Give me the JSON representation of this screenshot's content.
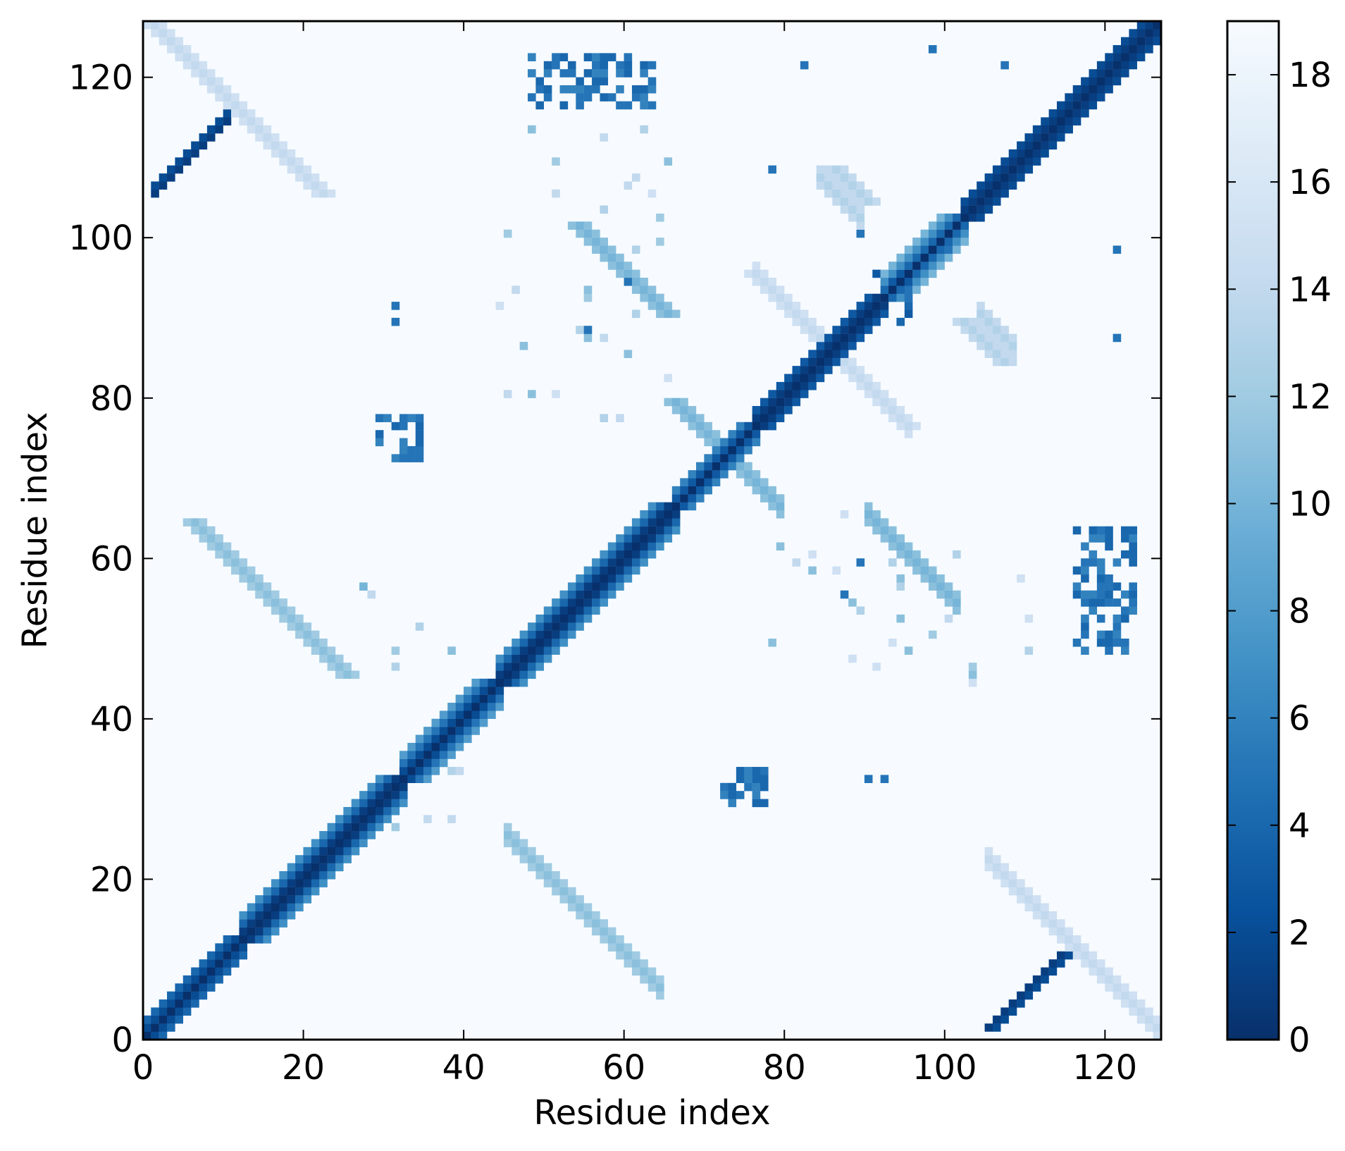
{
  "chart_data": {
    "type": "heatmap",
    "title": "",
    "xlabel": "Residue index",
    "ylabel": "Residue index",
    "n_residues": 127,
    "xlim": [
      0,
      127
    ],
    "ylim": [
      0,
      127
    ],
    "x_ticks": [
      "0",
      "20",
      "40",
      "60",
      "80",
      "100",
      "120"
    ],
    "y_ticks": [
      "0",
      "20",
      "40",
      "60",
      "80",
      "100",
      "120"
    ],
    "colorbar": {
      "min": 0,
      "max": 19,
      "ticks": [
        "0",
        "2",
        "4",
        "6",
        "8",
        "10",
        "12",
        "14",
        "16",
        "18"
      ],
      "colormap": "Blues_r",
      "colors": [
        "#08306b",
        "#08519c",
        "#2171b5",
        "#4292c6",
        "#6baed6",
        "#9ecae1",
        "#c6dbef",
        "#deebf7",
        "#f7fbff"
      ]
    },
    "background_value": 19,
    "features": [
      {
        "kind": "diagonal",
        "center_value": 0
      },
      {
        "kind": "helix_band",
        "from": 0,
        "to": 12,
        "values": [
          2,
          4
        ]
      },
      {
        "kind": "strand_band",
        "from": 12,
        "to": 32,
        "values": [
          1,
          4,
          7
        ]
      },
      {
        "kind": "strand_band",
        "from": 32,
        "to": 44,
        "values": [
          2,
          5,
          8
        ]
      },
      {
        "kind": "strand_band",
        "from": 44,
        "to": 66,
        "values": [
          1,
          4,
          7
        ]
      },
      {
        "kind": "helix_band",
        "from": 66,
        "to": 76,
        "values": [
          3,
          6
        ]
      },
      {
        "kind": "helix_band",
        "from": 76,
        "to": 92,
        "values": [
          1,
          3
        ]
      },
      {
        "kind": "strand_band",
        "from": 92,
        "to": 102,
        "values": [
          4,
          7,
          10
        ]
      },
      {
        "kind": "helix_band",
        "from": 102,
        "to": 127,
        "values": [
          1,
          2
        ]
      },
      {
        "kind": "antidiag",
        "i_range": [
          105,
          127
        ],
        "j0": 127,
        "value": 14
      },
      {
        "kind": "antidiag",
        "i_range": [
          76,
          96
        ],
        "j0": 171,
        "value": 14
      },
      {
        "kind": "antidiag",
        "i_range": [
          0,
          14
        ],
        "j0": 127,
        "value": 14
      },
      {
        "kind": "antidiag",
        "i_range": [
          84,
          90
        ],
        "j0": 191,
        "value": 13
      },
      {
        "kind": "antidiag",
        "i_range": [
          104,
          109
        ],
        "j0": 194,
        "value": 13
      },
      {
        "kind": "antidiag",
        "i_range": [
          45,
          65
        ],
        "j0": 70,
        "value": 11
      },
      {
        "kind": "antidiag",
        "i_range": [
          68,
          80
        ],
        "j0": 145,
        "value": 10
      },
      {
        "kind": "antidiag",
        "i_range": [
          90,
          102
        ],
        "j0": 155,
        "value": 10
      },
      {
        "kind": "stair",
        "i_range": [
          1,
          11
        ],
        "j0": 105,
        "value": 1
      },
      {
        "kind": "block",
        "i_range": [
          48,
          64
        ],
        "j_range": [
          116,
          123
        ],
        "value": 4
      },
      {
        "kind": "block",
        "i_range": [
          72,
          78
        ],
        "j_range": [
          29,
          34
        ],
        "value": 4
      },
      {
        "kind": "block",
        "i_range": [
          90,
          96
        ],
        "j_range": [
          94,
          96
        ],
        "value": 3
      },
      {
        "kind": "block",
        "i_range": [
          29,
          35
        ],
        "j_range": [
          72,
          78
        ],
        "value": 4
      },
      {
        "kind": "block",
        "i_range": [
          116,
          124
        ],
        "j_range": [
          48,
          64
        ],
        "value": 4
      },
      {
        "kind": "block",
        "i_range": [
          94,
          96
        ],
        "j_range": [
          88,
          96
        ],
        "value": 3
      },
      {
        "kind": "dots",
        "points": [
          [
            31,
            89
          ],
          [
            31,
            91
          ],
          [
            87,
            55
          ],
          [
            89,
            59
          ],
          [
            90,
            32
          ],
          [
            92,
            32
          ],
          [
            82,
            121
          ],
          [
            98,
            123
          ],
          [
            100,
            98
          ],
          [
            107,
            121
          ],
          [
            89,
            100
          ],
          [
            121,
            87
          ],
          [
            121,
            98
          ],
          [
            78,
            108
          ],
          [
            55,
            88
          ],
          [
            60,
            94
          ]
        ],
        "value": 5
      },
      {
        "kind": "scatter",
        "i_range": [
          44,
          66
        ],
        "j_range": [
          77,
          114
        ],
        "value": 11
      },
      {
        "kind": "scatter",
        "i_range": [
          77,
          114
        ],
        "j_range": [
          44,
          66
        ],
        "value": 11
      },
      {
        "kind": "scatter",
        "i_range": [
          27,
          42
        ],
        "j_range": [
          26,
          60
        ],
        "value": 10
      }
    ]
  }
}
